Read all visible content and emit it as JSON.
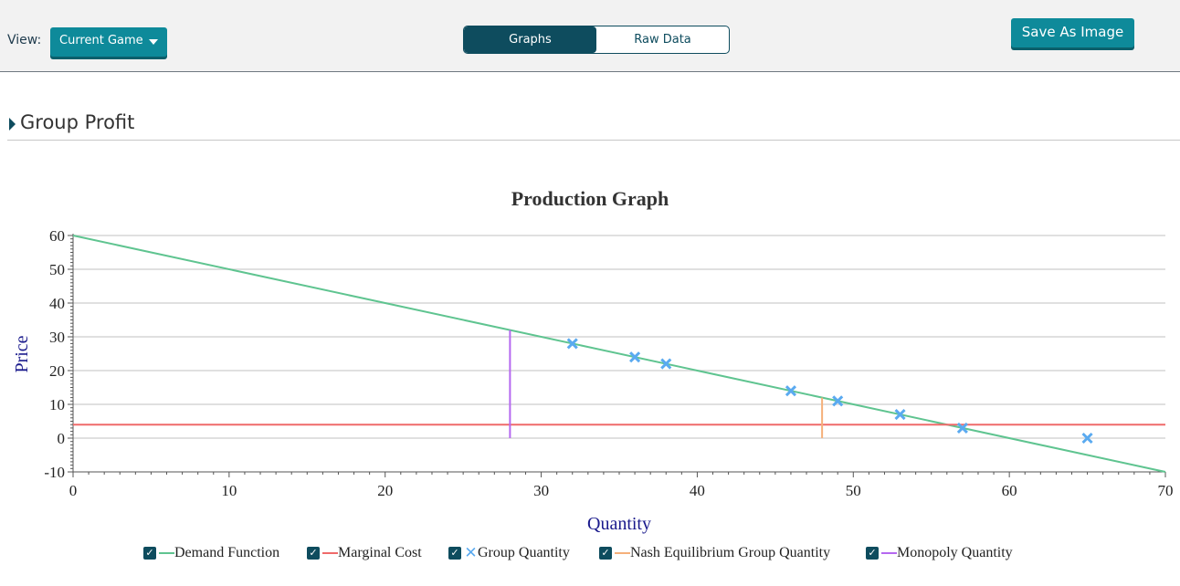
{
  "toolbar": {
    "view_label": "View:",
    "view_select": "Current Game",
    "tabs": [
      {
        "label": "Graphs",
        "active": true
      },
      {
        "label": "Raw Data",
        "active": false
      }
    ],
    "save_label": "Save As Image"
  },
  "section": {
    "title": "Group Profit"
  },
  "colors": {
    "accent": "#0e8a9a",
    "dark": "#0e4c5e",
    "demand": "#5fc490",
    "marginal_cost": "#ef6a6a",
    "group_quantity": "#5aaaf0",
    "nash": "#f5b07a",
    "monopoly": "#b568f0"
  },
  "chart_data": {
    "type": "line",
    "title": "Production Graph",
    "xlabel": "Quantity",
    "ylabel": "Price",
    "xlim": [
      0,
      70
    ],
    "ylim": [
      -10,
      60
    ],
    "xticks": [
      0,
      10,
      20,
      30,
      40,
      50,
      60,
      70
    ],
    "yticks": [
      -10,
      0,
      10,
      20,
      30,
      40,
      50,
      60
    ],
    "grid": "horizontal",
    "legend_position": "bottom",
    "series": [
      {
        "name": "Demand Function",
        "kind": "line",
        "color": "#5fc490",
        "x": [
          0,
          70
        ],
        "y": [
          60,
          -10
        ]
      },
      {
        "name": "Marginal Cost",
        "kind": "line",
        "color": "#ef6a6a",
        "x": [
          0,
          70
        ],
        "y": [
          4,
          4
        ]
      },
      {
        "name": "Group Quantity",
        "kind": "scatter",
        "color": "#5aaaf0",
        "x": [
          32,
          36,
          38,
          46,
          49,
          53,
          57,
          65
        ],
        "y": [
          28,
          24,
          22,
          14,
          11,
          7,
          3,
          0
        ]
      },
      {
        "name": "Nash Equilibrium Group Quantity",
        "kind": "vline",
        "color": "#f5b07a",
        "x": [
          48,
          48
        ],
        "y": [
          0,
          12
        ]
      },
      {
        "name": "Monopoly Quantity",
        "kind": "vline",
        "color": "#b568f0",
        "x": [
          28,
          28
        ],
        "y": [
          0,
          32
        ]
      }
    ]
  }
}
